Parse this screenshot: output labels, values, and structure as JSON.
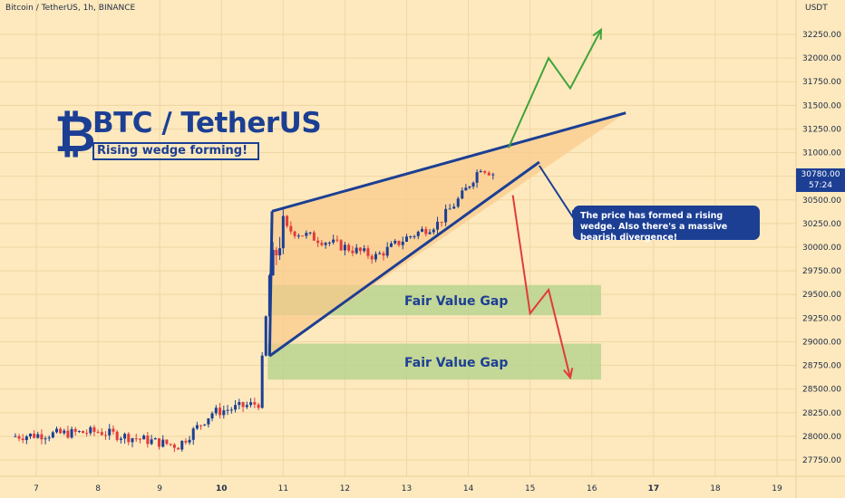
{
  "header": {
    "symbol_line": "Bitcoin / TetherUS, 1h, BINANCE",
    "currency": "USDT"
  },
  "brand": {
    "logo": "₿",
    "title": "BTC / TetherUS",
    "subtitle": "Rising wedge forming!"
  },
  "callout": {
    "text": "The price has formed a rising wedge. Also there's a massive bearish divergence!"
  },
  "fvg": {
    "upper_label": "Fair Value Gap",
    "lower_label": "Fair Value Gap"
  },
  "current_price": {
    "price": "30780.00",
    "countdown": "57:24"
  },
  "colors": {
    "background": "#fde9bd",
    "accent": "#1c3f94",
    "up": "#1c3f94",
    "down": "#e23b3b",
    "wedge_fill": "#f9c98a",
    "fvg_fill": "#b9d38f",
    "bull_path": "#3fa33a",
    "bear_path": "#e23b3b"
  },
  "chart_data": {
    "type": "candlestick",
    "x_axis_ticks": [
      "7",
      "8",
      "9",
      "10",
      "11",
      "12",
      "13",
      "14",
      "15",
      "16",
      "17",
      "18",
      "19"
    ],
    "y_axis_ticks": [
      "32250.00",
      "32000.00",
      "31750.00",
      "31500.00",
      "31250.00",
      "31000.00",
      "30750.00",
      "30500.00",
      "30250.00",
      "30000.00",
      "29750.00",
      "29500.00",
      "29250.00",
      "29000.00",
      "28750.00",
      "28500.00",
      "28250.00",
      "28000.00",
      "27750.00"
    ],
    "y_range": [
      27650,
      32450
    ],
    "x_range": [
      6.6,
      19.3
    ],
    "grid": true,
    "key_points": [
      {
        "x": 6.6,
        "y": 28000
      },
      {
        "x": 8.0,
        "y": 28050
      },
      {
        "x": 9.3,
        "y": 27900
      },
      {
        "x": 9.85,
        "y": 28250
      },
      {
        "x": 10.6,
        "y": 28350
      },
      {
        "x": 10.78,
        "y": 29700
      },
      {
        "x": 11.0,
        "y": 30200
      },
      {
        "x": 11.5,
        "y": 30100
      },
      {
        "x": 12.0,
        "y": 30000
      },
      {
        "x": 12.5,
        "y": 29900
      },
      {
        "x": 13.0,
        "y": 30100
      },
      {
        "x": 13.5,
        "y": 30250
      },
      {
        "x": 13.9,
        "y": 30550
      },
      {
        "x": 14.2,
        "y": 30850
      },
      {
        "x": 14.4,
        "y": 30780
      }
    ],
    "wedge": {
      "upper_line": [
        {
          "x": 10.82,
          "y": 30380
        },
        {
          "x": 16.55,
          "y": 31420
        }
      ],
      "lower_line": [
        {
          "x": 10.78,
          "y": 28850
        },
        {
          "x": 15.15,
          "y": 30900
        }
      ]
    },
    "fair_value_gaps": [
      {
        "x_start": 10.82,
        "x_end": 16.15,
        "y_low": 29280,
        "y_high": 29600
      },
      {
        "x_start": 10.75,
        "x_end": 16.15,
        "y_low": 28600,
        "y_high": 28980
      }
    ],
    "bullish_projection": [
      {
        "x": 14.65,
        "y": 31050
      },
      {
        "x": 15.3,
        "y": 32000
      },
      {
        "x": 15.65,
        "y": 31680
      },
      {
        "x": 16.15,
        "y": 32300
      }
    ],
    "bearish_projection": [
      {
        "x": 14.72,
        "y": 30550
      },
      {
        "x": 15.0,
        "y": 29300
      },
      {
        "x": 15.3,
        "y": 29550
      },
      {
        "x": 15.65,
        "y": 28620
      }
    ]
  }
}
